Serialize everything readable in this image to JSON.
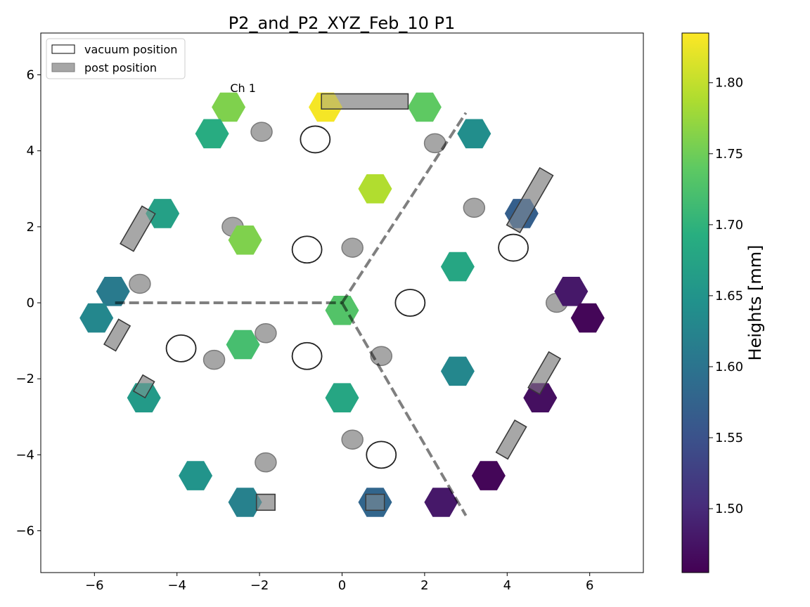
{
  "chart_data": {
    "type": "scatter",
    "title": "P2_and_P2_XYZ_Feb_10 P1",
    "xlabel": "",
    "ylabel": "",
    "xlim": [
      -7.3,
      7.3
    ],
    "ylim": [
      -7.1,
      7.1
    ],
    "x_ticks": [
      -6,
      -4,
      -2,
      0,
      2,
      4,
      6
    ],
    "y_ticks": [
      -6,
      -4,
      -2,
      0,
      2,
      4,
      6
    ],
    "x_tick_labels": [
      "−6",
      "−4",
      "−2",
      "0",
      "2",
      "4",
      "6"
    ],
    "y_tick_labels": [
      "−6",
      "−4",
      "−2",
      "0",
      "2",
      "4",
      "6"
    ],
    "annotation": {
      "text": "Ch 1",
      "x": -2.4,
      "y": 5.55
    },
    "legend": {
      "placement": "upper-left",
      "entries": [
        {
          "label": "vacuum position",
          "style": "open"
        },
        {
          "label": "post position",
          "style": "filled-gray"
        }
      ]
    },
    "colorbar": {
      "label": "Heights [mm]",
      "min": 1.455,
      "max": 1.835,
      "ticks": [
        1.5,
        1.55,
        1.6,
        1.65,
        1.7,
        1.75,
        1.8
      ],
      "tick_labels": [
        "1.50",
        "1.55",
        "1.60",
        "1.65",
        "1.70",
        "1.75",
        "1.80"
      ],
      "colormap": "viridis"
    },
    "hexagons": [
      {
        "x": -2.75,
        "y": 5.15,
        "h": 1.76
      },
      {
        "x": -3.15,
        "y": 4.45,
        "h": 1.69
      },
      {
        "x": -0.4,
        "y": 5.15,
        "h": 1.83
      },
      {
        "x": 2.0,
        "y": 5.15,
        "h": 1.74
      },
      {
        "x": 3.2,
        "y": 4.45,
        "h": 1.64
      },
      {
        "x": 0.8,
        "y": 3.0,
        "h": 1.79
      },
      {
        "x": -4.35,
        "y": 2.35,
        "h": 1.67
      },
      {
        "x": -2.35,
        "y": 1.65,
        "h": 1.76
      },
      {
        "x": 4.35,
        "y": 2.35,
        "h": 1.57
      },
      {
        "x": 2.8,
        "y": 0.95,
        "h": 1.68
      },
      {
        "x": -5.55,
        "y": 0.3,
        "h": 1.61
      },
      {
        "x": -5.95,
        "y": -0.4,
        "h": 1.63
      },
      {
        "x": 0.0,
        "y": -0.2,
        "h": 1.73
      },
      {
        "x": -2.4,
        "y": -1.1,
        "h": 1.72
      },
      {
        "x": 5.55,
        "y": 0.3,
        "h": 1.48
      },
      {
        "x": 5.95,
        "y": -0.4,
        "h": 1.46
      },
      {
        "x": 2.8,
        "y": -1.8,
        "h": 1.63
      },
      {
        "x": -4.8,
        "y": -2.5,
        "h": 1.66
      },
      {
        "x": 0.0,
        "y": -2.5,
        "h": 1.68
      },
      {
        "x": 4.8,
        "y": -2.5,
        "h": 1.47
      },
      {
        "x": -3.55,
        "y": -4.55,
        "h": 1.65
      },
      {
        "x": 3.55,
        "y": -4.55,
        "h": 1.46
      },
      {
        "x": -2.35,
        "y": -5.25,
        "h": 1.62
      },
      {
        "x": 0.8,
        "y": -5.25,
        "h": 1.58
      },
      {
        "x": 2.4,
        "y": -5.25,
        "h": 1.48
      }
    ],
    "vacuum_positions": [
      {
        "x": -0.65,
        "y": 4.3
      },
      {
        "x": -0.85,
        "y": 1.4
      },
      {
        "x": 4.15,
        "y": 1.45
      },
      {
        "x": 1.65,
        "y": 0.0
      },
      {
        "x": -3.9,
        "y": -1.2
      },
      {
        "x": -0.85,
        "y": -1.4
      },
      {
        "x": 0.95,
        "y": -4.0
      }
    ],
    "post_positions_round": [
      {
        "x": -1.95,
        "y": 4.5
      },
      {
        "x": 2.25,
        "y": 4.2
      },
      {
        "x": 3.2,
        "y": 2.5
      },
      {
        "x": -2.65,
        "y": 2.0
      },
      {
        "x": 0.25,
        "y": 1.45
      },
      {
        "x": -4.9,
        "y": 0.5
      },
      {
        "x": 5.2,
        "y": 0.0
      },
      {
        "x": -1.85,
        "y": -0.8
      },
      {
        "x": -3.1,
        "y": -1.5
      },
      {
        "x": 0.95,
        "y": -1.4
      },
      {
        "x": 0.25,
        "y": -3.6
      },
      {
        "x": -1.85,
        "y": -4.2
      }
    ],
    "post_positions_rect": [
      {
        "cx": 0.55,
        "cy": 5.3,
        "w": 2.1,
        "h": 0.4,
        "angle": 0
      },
      {
        "cx": 4.55,
        "cy": 2.7,
        "w": 1.6,
        "h": 0.4,
        "angle": 60
      },
      {
        "cx": -4.95,
        "cy": 1.95,
        "w": 1.05,
        "h": 0.4,
        "angle": 60
      },
      {
        "cx": -5.45,
        "cy": -0.85,
        "w": 0.7,
        "h": 0.35,
        "angle": 60
      },
      {
        "cx": -4.8,
        "cy": -2.2,
        "w": 0.45,
        "h": 0.35,
        "angle": 60
      },
      {
        "cx": 4.9,
        "cy": -1.85,
        "w": 1.0,
        "h": 0.35,
        "angle": 60
      },
      {
        "cx": 4.1,
        "cy": -3.6,
        "w": 0.9,
        "h": 0.35,
        "angle": 60
      },
      {
        "cx": -1.85,
        "cy": -5.25,
        "w": 0.45,
        "h": 0.42,
        "angle": 0
      },
      {
        "cx": 0.8,
        "cy": -5.25,
        "w": 0.45,
        "h": 0.42,
        "angle": 0
      }
    ],
    "dashed_lines": [
      [
        [
          -5.5,
          0.0
        ],
        [
          0.0,
          0.0
        ]
      ],
      [
        [
          0.0,
          0.0
        ],
        [
          3.0,
          5.0
        ]
      ],
      [
        [
          0.0,
          0.0
        ],
        [
          3.0,
          -5.6
        ]
      ]
    ]
  }
}
